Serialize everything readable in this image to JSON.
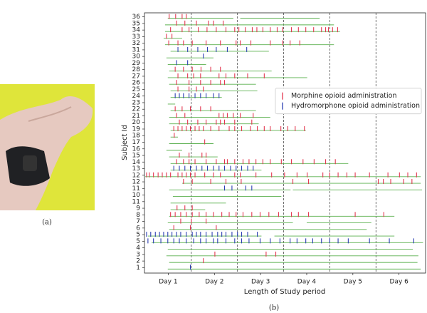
{
  "chart_data": {
    "type": "timeline",
    "xlabel": "Length of Study period",
    "ylabel": "Subject Id",
    "xlim": [
      0,
      6.06
    ],
    "xticks": [
      {
        "value": 0.5,
        "label": "Day 1"
      },
      {
        "value": 1.5,
        "label": "Day 2"
      },
      {
        "value": 2.5,
        "label": "Day 3"
      },
      {
        "value": 3.5,
        "label": "Day 4"
      },
      {
        "value": 4.5,
        "label": "Day 5"
      },
      {
        "value": 5.5,
        "label": "Day 6"
      }
    ],
    "vlines": [
      1,
      2,
      3,
      4,
      5
    ],
    "categories": [
      "1",
      "2",
      "3",
      "4",
      "5",
      "5",
      "6",
      "7",
      "8",
      "9",
      "11",
      "10",
      "11",
      "12",
      "12",
      "13",
      "14",
      "15",
      "16",
      "17",
      "18",
      "19",
      "20",
      "21",
      "22",
      "23",
      "24",
      "25",
      "26",
      "27",
      "28",
      "29",
      "30",
      "31",
      "32",
      "33",
      "34",
      "35",
      "36"
    ],
    "observation": {
      "color": "#5bb04f",
      "values": [
        [
          [
            0.49,
            5.97
          ]
        ],
        [
          [
            0.52,
            5.9
          ]
        ],
        [
          [
            0.46,
            5.92
          ]
        ],
        [
          [
            0.49,
            5.8
          ]
        ],
        [
          [
            0.14,
            6.02
          ]
        ],
        [
          [
            0.06,
            2.52
          ],
          [
            2.8,
            5.4
          ]
        ],
        [
          [
            0.52,
            4.8
          ]
        ],
        [
          [
            0.49,
            3.2
          ],
          [
            3.5,
            4.9
          ]
        ],
        [
          [
            0.52,
            5.4
          ]
        ],
        [
          [
            0.55,
            1.3
          ]
        ],
        [
          [
            0.55,
            1.75
          ]
        ],
        [
          [
            0.6,
            2.95
          ]
        ],
        [
          [
            0.52,
            3.15
          ],
          [
            3.2,
            6.0
          ]
        ],
        [
          [
            0.8,
            5.97
          ]
        ],
        [
          [
            0.0,
            5.97
          ]
        ],
        [
          [
            0.55,
            2.52
          ]
        ],
        [
          [
            0.55,
            4.4
          ]
        ],
        [
          [
            0.52,
            1.57
          ]
        ],
        [
          [
            0.46,
            0.8
          ]
        ],
        [
          [
            0.52,
            1.48
          ]
        ],
        [
          [
            0.55,
            0.71
          ]
        ],
        [
          [
            0.55,
            3.48
          ]
        ],
        [
          [
            0.52,
            2.46
          ]
        ],
        [
          [
            0.52,
            2.71
          ]
        ],
        [
          [
            0.55,
            2.4
          ]
        ],
        [
          [
            0.49,
            0.65
          ]
        ],
        [
          [
            0.55,
            1.66
          ]
        ],
        [
          [
            0.55,
            2.43
          ]
        ],
        [
          [
            0.52,
            2.4
          ]
        ],
        [
          [
            0.49,
            3.51
          ]
        ],
        [
          [
            0.52,
            2.74
          ]
        ],
        [
          [
            0.49,
            1.32
          ]
        ],
        [
          [
            0.46,
            1.48
          ]
        ],
        [
          [
            0.55,
            2.68
          ]
        ],
        [
          [
            0.43,
            4.09
          ]
        ],
        [
          [
            0.4,
            0.8
          ]
        ],
        [
          [
            0.43,
            4.22
          ]
        ],
        [
          [
            0.43,
            4.09
          ]
        ],
        [
          [
            0.49,
            1.91
          ],
          [
            2.06,
            3.78
          ]
        ]
      ]
    },
    "series": [
      {
        "name": "Morphine opioid administration",
        "color": "#e3364f",
        "values": [
          [],
          [
            1.26
          ],
          [
            1.51,
            2.62,
            2.83
          ],
          [],
          [],
          [],
          [
            0.62,
            0.98,
            1.54
          ],
          [
            0.77,
            1.0,
            1.32
          ],
          [
            0.55,
            0.65,
            0.77,
            0.89,
            1.02,
            1.17,
            1.32,
            1.48,
            1.66,
            1.82,
            1.97,
            2.12,
            2.31,
            2.49,
            2.68,
            2.89,
            3.17,
            3.32,
            3.54,
            4.55,
            5.17
          ],
          [
            0.69,
            0.86,
            1.02
          ],
          [],
          [],
          [],
          [
            0.83,
            1.02,
            1.42,
            1.75,
            2.08,
            3.2,
            3.54,
            5.05,
            5.16,
            5.32,
            5.6,
            5.78
          ],
          [
            0.03,
            0.09,
            0.18,
            0.28,
            0.37,
            0.46,
            0.55,
            0.71,
            0.8,
            0.89,
            0.98,
            1.08,
            1.29,
            1.48,
            1.63,
            1.94,
            2.06,
            2.4,
            2.74,
            3.02,
            3.29,
            3.51,
            3.85,
            4.0,
            4.18,
            4.37,
            4.55,
            4.86,
            5.26,
            5.51,
            5.69,
            5.88
          ],
          [],
          [
            0.68,
            0.83,
            0.95,
            1.08,
            1.32,
            1.54,
            1.72,
            1.78,
            1.94,
            2.12,
            2.25,
            2.4,
            2.55,
            2.71,
            2.95,
            3.17,
            3.42,
            3.66,
            3.91,
            4.12
          ],
          [
            0.74,
            0.95,
            1.23,
            1.32
          ],
          [],
          [
            1.29
          ],
          [
            0.63
          ],
          [
            0.62,
            0.71,
            0.8,
            0.89,
            0.98,
            1.08,
            1.17,
            1.26,
            1.42,
            1.6,
            1.82,
            1.94,
            2.09,
            2.28,
            2.43,
            2.58,
            2.71,
            2.94,
            3.09,
            3.25,
            3.45
          ],
          [
            0.74,
            0.92,
            1.14,
            1.32,
            1.54,
            1.63,
            1.72,
            1.94,
            2.31
          ],
          [
            0.68,
            0.86,
            1.6,
            1.69,
            1.78,
            1.91,
            2.06,
            2.34
          ],
          [
            0.65,
            0.8,
            0.98,
            1.2,
            1.42
          ],
          [],
          [],
          [
            0.71,
            0.95,
            1.11,
            1.26
          ],
          [
            0.68,
            0.95,
            1.2,
            1.42,
            1.63,
            1.72
          ],
          [
            0.71,
            0.92,
            1.05,
            1.2,
            1.6,
            1.75,
            1.94,
            2.22,
            2.58
          ],
          [
            0.65,
            0.83,
            1.02,
            1.21,
            1.42,
            1.63
          ],
          [],
          [],
          [],
          [
            0.51,
            0.71,
            0.83,
            1.02,
            1.32,
            1.63,
            1.97,
            2.06,
            2.29,
            2.71,
            2.98,
            3.14,
            3.35
          ],
          [
            0.46,
            0.58
          ],
          [
            0.55,
            0.8,
            0.95,
            1.15,
            1.34,
            1.54,
            1.75,
            1.94,
            2.03,
            2.17,
            2.32,
            2.42,
            2.55,
            2.71,
            2.86,
            2.98,
            3.17,
            3.32,
            3.48,
            3.65,
            3.82,
            3.91,
            3.97,
            4.06,
            4.17
          ],
          [
            0.68,
            0.86,
            1.11,
            1.37,
            1.48,
            1.69
          ],
          [
            0.52,
            0.66,
            0.8,
            0.89
          ]
        ]
      },
      {
        "name": "Hydromorphone opioid administration",
        "color": "#2b3fb2",
        "values": [
          [
            0.98
          ],
          [],
          [],
          [],
          [
            0.06,
            0.18,
            0.34,
            0.49,
            0.62,
            0.74,
            0.89,
            1.05,
            1.2,
            1.32,
            1.48,
            1.57,
            1.75,
            1.94,
            2.09,
            2.25,
            2.49,
            2.71,
            2.92,
            3.14,
            3.29,
            3.48,
            3.63,
            3.82,
            4.0,
            4.18,
            4.4,
            4.86,
            5.29,
            5.82
          ],
          [
            0.03,
            0.12,
            0.22,
            0.31,
            0.4,
            0.49,
            0.58,
            0.68,
            0.77,
            0.89,
            1.02,
            1.11,
            1.2,
            1.32,
            1.45,
            1.57,
            1.66,
            1.75,
            1.88,
            2.0,
            2.09,
            2.22,
            2.43
          ],
          [],
          [],
          [],
          [],
          [],
          [],
          [
            1.72,
            1.88,
            2.18,
            2.31
          ],
          [],
          [],
          [
            0.62,
            0.74,
            0.86,
            0.98,
            1.11,
            1.23,
            1.35,
            1.48,
            1.6,
            1.72,
            1.85,
            1.97,
            2.09,
            2.22,
            2.34
          ],
          [],
          [],
          [],
          [],
          [],
          [],
          [],
          [],
          [],
          [],
          [
            0.65,
            0.74,
            0.83,
            0.95,
            1.08,
            1.2,
            1.32,
            1.48,
            1.6
          ],
          [],
          [],
          [],
          [],
          [
            0.68,
            0.92
          ],
          [
            1.26
          ],
          [
            0.71,
            0.92,
            1.14,
            1.35,
            1.54,
            1.78,
            2.2
          ],
          [],
          [],
          [],
          [],
          []
        ]
      }
    ],
    "legend": "center right"
  },
  "panels": {
    "a": "(a)",
    "b": "(b)"
  }
}
